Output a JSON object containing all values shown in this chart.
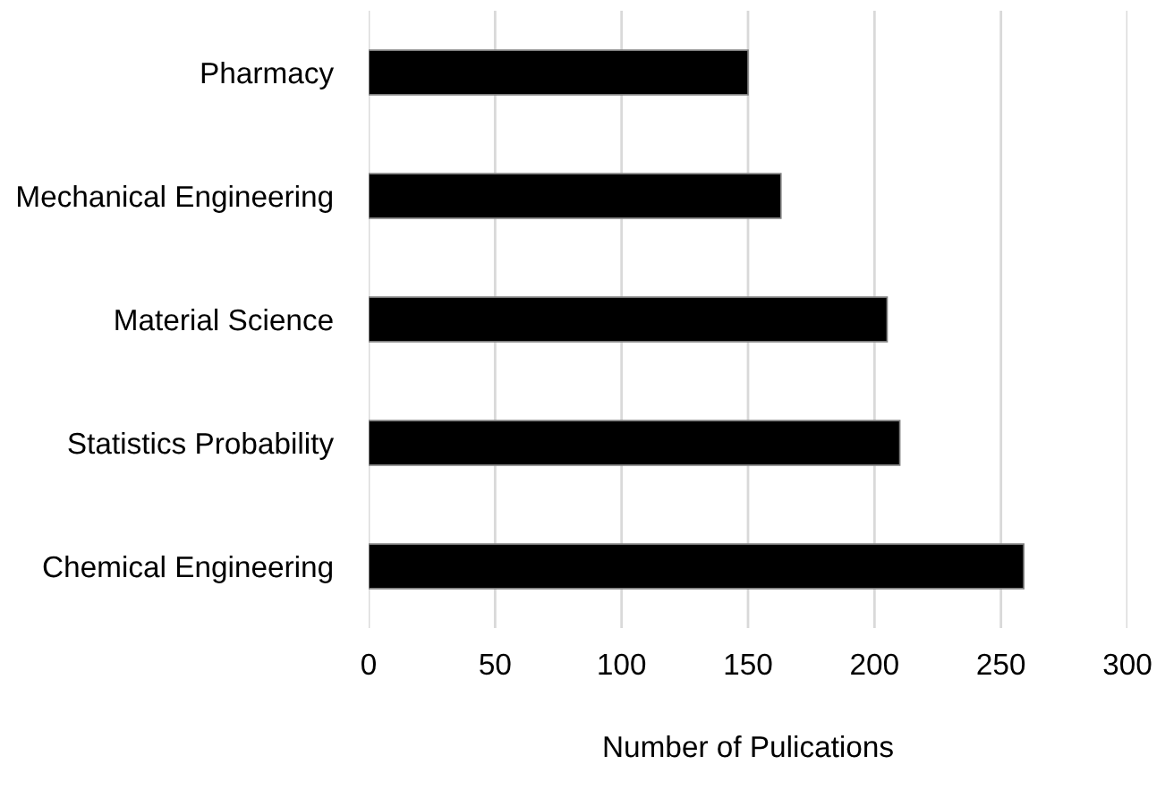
{
  "chart_data": {
    "type": "bar",
    "orientation": "horizontal",
    "xlabel": "Number of Pulications",
    "categories": [
      "Pharmacy",
      "Mechanical Engineering",
      "Material Science",
      "Statistics Probability",
      "Chemical Engineering"
    ],
    "values": [
      150,
      163,
      205,
      210,
      259
    ],
    "color": "#000000",
    "xlim": [
      0,
      300
    ],
    "xticks": [
      0,
      50,
      100,
      150,
      200,
      250,
      300
    ],
    "grid": "x"
  }
}
